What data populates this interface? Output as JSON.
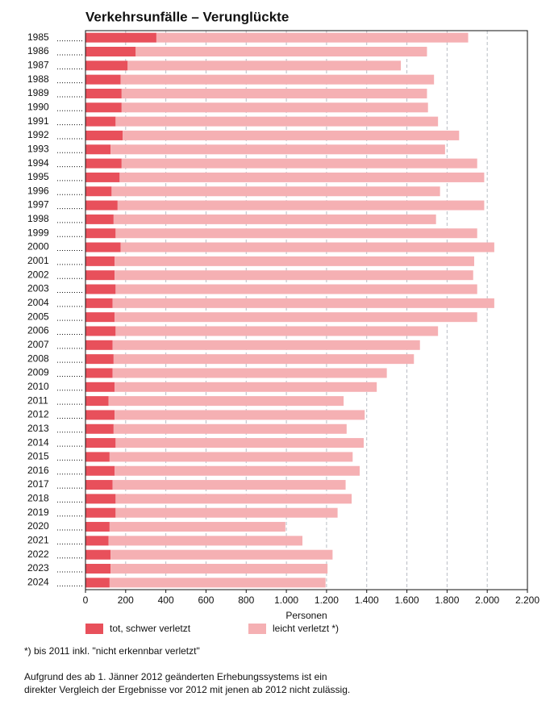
{
  "chart_data": {
    "type": "bar",
    "orientation": "horizontal",
    "stacked": true,
    "title": "Verkehrsunfälle – Verunglückte",
    "xlabel": "Personen",
    "categories": [
      "1985",
      "1986",
      "1987",
      "1988",
      "1989",
      "1990",
      "1991",
      "1992",
      "1993",
      "1994",
      "1995",
      "1996",
      "1997",
      "1998",
      "1999",
      "2000",
      "2001",
      "2002",
      "2003",
      "2004",
      "2005",
      "2006",
      "2007",
      "2008",
      "2009",
      "2010",
      "2011",
      "2012",
      "2013",
      "2014",
      "2015",
      "2016",
      "2017",
      "2018",
      "2019",
      "2020",
      "2021",
      "2022",
      "2023",
      "2024"
    ],
    "series": [
      {
        "name": "tot, schwer verletzt",
        "color": "#e8505b",
        "values": [
          353,
          250,
          210,
          175,
          180,
          180,
          150,
          185,
          125,
          180,
          170,
          130,
          160,
          140,
          150,
          175,
          145,
          145,
          150,
          135,
          145,
          150,
          135,
          140,
          135,
          145,
          115,
          145,
          140,
          150,
          120,
          145,
          135,
          150,
          150,
          120,
          115,
          125,
          125,
          120
        ]
      },
      {
        "name": "leicht verletzt *)",
        "color": "#f5b0b3",
        "values": [
          1552,
          1450,
          1360,
          1560,
          1520,
          1525,
          1605,
          1675,
          1665,
          1770,
          1815,
          1635,
          1825,
          1605,
          1800,
          1860,
          1790,
          1785,
          1800,
          1900,
          1805,
          1605,
          1530,
          1495,
          1365,
          1305,
          1170,
          1245,
          1160,
          1235,
          1210,
          1220,
          1160,
          1175,
          1105,
          875,
          965,
          1105,
          1080,
          1075
        ]
      }
    ],
    "xlim": [
      0,
      2200
    ],
    "xticks": [
      0,
      200,
      400,
      600,
      800,
      {
        "value": 1000,
        "label": "1.000"
      },
      {
        "value": 1200,
        "label": "1.200"
      },
      {
        "value": 1400,
        "label": "1.400"
      },
      {
        "value": 1600,
        "label": "1.600"
      },
      {
        "value": 1800,
        "label": "1.800"
      },
      {
        "value": 2000,
        "label": "2.000"
      },
      {
        "value": 2200,
        "label": "2.200"
      }
    ],
    "grid": true,
    "legend": "bottom",
    "notes": [
      "*) bis 2011 inkl. \"nicht erkennbar verletzt\"",
      "Aufgrund des ab 1. Jänner 2012 geänderten Erhebungssystems ist ein",
      "direkter Vergleich der Ergebnisse vor 2012 mit jenen ab 2012 nicht zulässig."
    ]
  }
}
